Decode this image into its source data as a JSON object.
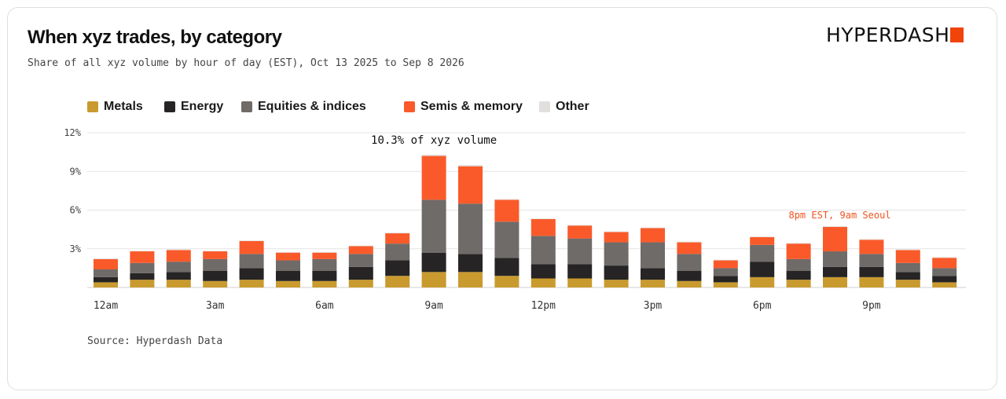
{
  "header": {
    "title": "When xyz trades, by category",
    "subtitle": "Share of all xyz volume by hour of day (EST), Oct 13 2025 to Sep 8 2026",
    "brand": "HYPERDASH"
  },
  "footer": {
    "source": "Source: Hyperdash Data"
  },
  "colors": {
    "metals": "#c99a2e",
    "energy": "#262424",
    "equities": "#6f6b69",
    "semis": "#fa5a2a",
    "other": "#e2e0de",
    "grid": "#e4e4e4",
    "brand_accent": "#f0440a",
    "annotation_accent": "#f0531d"
  },
  "chart_data": {
    "type": "bar",
    "stacked": true,
    "title": "When xyz trades, by category",
    "x": [
      "12am",
      "1am",
      "2am",
      "3am",
      "4am",
      "5am",
      "6am",
      "7am",
      "8am",
      "9am",
      "10am",
      "11am",
      "12pm",
      "1pm",
      "2pm",
      "3pm",
      "4pm",
      "5pm",
      "6pm",
      "7pm",
      "8pm",
      "9pm",
      "10pm",
      "11pm"
    ],
    "tick_labels": [
      "12am",
      "",
      "",
      "3am",
      "",
      "",
      "6am",
      "",
      "",
      "9am",
      "",
      "",
      "12pm",
      "",
      "",
      "3pm",
      "",
      "",
      "6pm",
      "",
      "",
      "9pm",
      "",
      ""
    ],
    "series": [
      {
        "name": "Metals",
        "color_key": "metals",
        "values": [
          0.4,
          0.6,
          0.6,
          0.5,
          0.6,
          0.5,
          0.5,
          0.6,
          0.9,
          1.2,
          1.2,
          0.9,
          0.7,
          0.7,
          0.6,
          0.6,
          0.5,
          0.4,
          0.8,
          0.6,
          0.8,
          0.8,
          0.6,
          0.4
        ]
      },
      {
        "name": "Energy",
        "color_key": "energy",
        "values": [
          0.4,
          0.5,
          0.6,
          0.8,
          0.9,
          0.8,
          0.8,
          1.0,
          1.2,
          1.5,
          1.4,
          1.4,
          1.1,
          1.1,
          1.1,
          0.9,
          0.8,
          0.5,
          1.2,
          0.7,
          0.8,
          0.8,
          0.6,
          0.5
        ]
      },
      {
        "name": "Equities & indices",
        "color_key": "equities",
        "values": [
          0.6,
          0.8,
          0.8,
          0.9,
          1.1,
          0.8,
          0.9,
          1.0,
          1.3,
          4.1,
          3.9,
          2.8,
          2.2,
          2.0,
          1.8,
          2.0,
          1.3,
          0.6,
          1.3,
          0.9,
          1.2,
          1.0,
          0.7,
          0.6
        ]
      },
      {
        "name": "Semis & memory",
        "color_key": "semis",
        "values": [
          0.8,
          0.9,
          0.9,
          0.6,
          1.0,
          0.6,
          0.5,
          0.6,
          0.8,
          3.4,
          2.9,
          1.7,
          1.3,
          1.0,
          0.8,
          1.1,
          0.9,
          0.6,
          0.6,
          1.2,
          1.9,
          1.1,
          1.0,
          0.8
        ]
      },
      {
        "name": "Other",
        "color_key": "other",
        "values": [
          0.05,
          0.05,
          0.05,
          0.05,
          0.05,
          0.05,
          0.05,
          0.05,
          0.05,
          0.1,
          0.1,
          0.05,
          0.05,
          0.05,
          0.05,
          0.05,
          0.05,
          0.05,
          0.05,
          0.05,
          0.05,
          0.05,
          0.05,
          0.05
        ]
      }
    ],
    "y_ticks": [
      0,
      3,
      6,
      9,
      12
    ],
    "y_tick_labels": [
      "",
      "3%",
      "6%",
      "9%",
      "12%"
    ],
    "ylim": [
      0,
      12
    ],
    "grid": true,
    "legend_position": "top-left",
    "annotations": [
      {
        "text": "10.3% of xyz volume",
        "x": "9am",
        "y": 10.3,
        "color_key": null
      },
      {
        "text": "8pm EST, 9am Seoul",
        "x": "8pm",
        "y": 4.7,
        "color_key": "annotation_accent"
      }
    ]
  }
}
